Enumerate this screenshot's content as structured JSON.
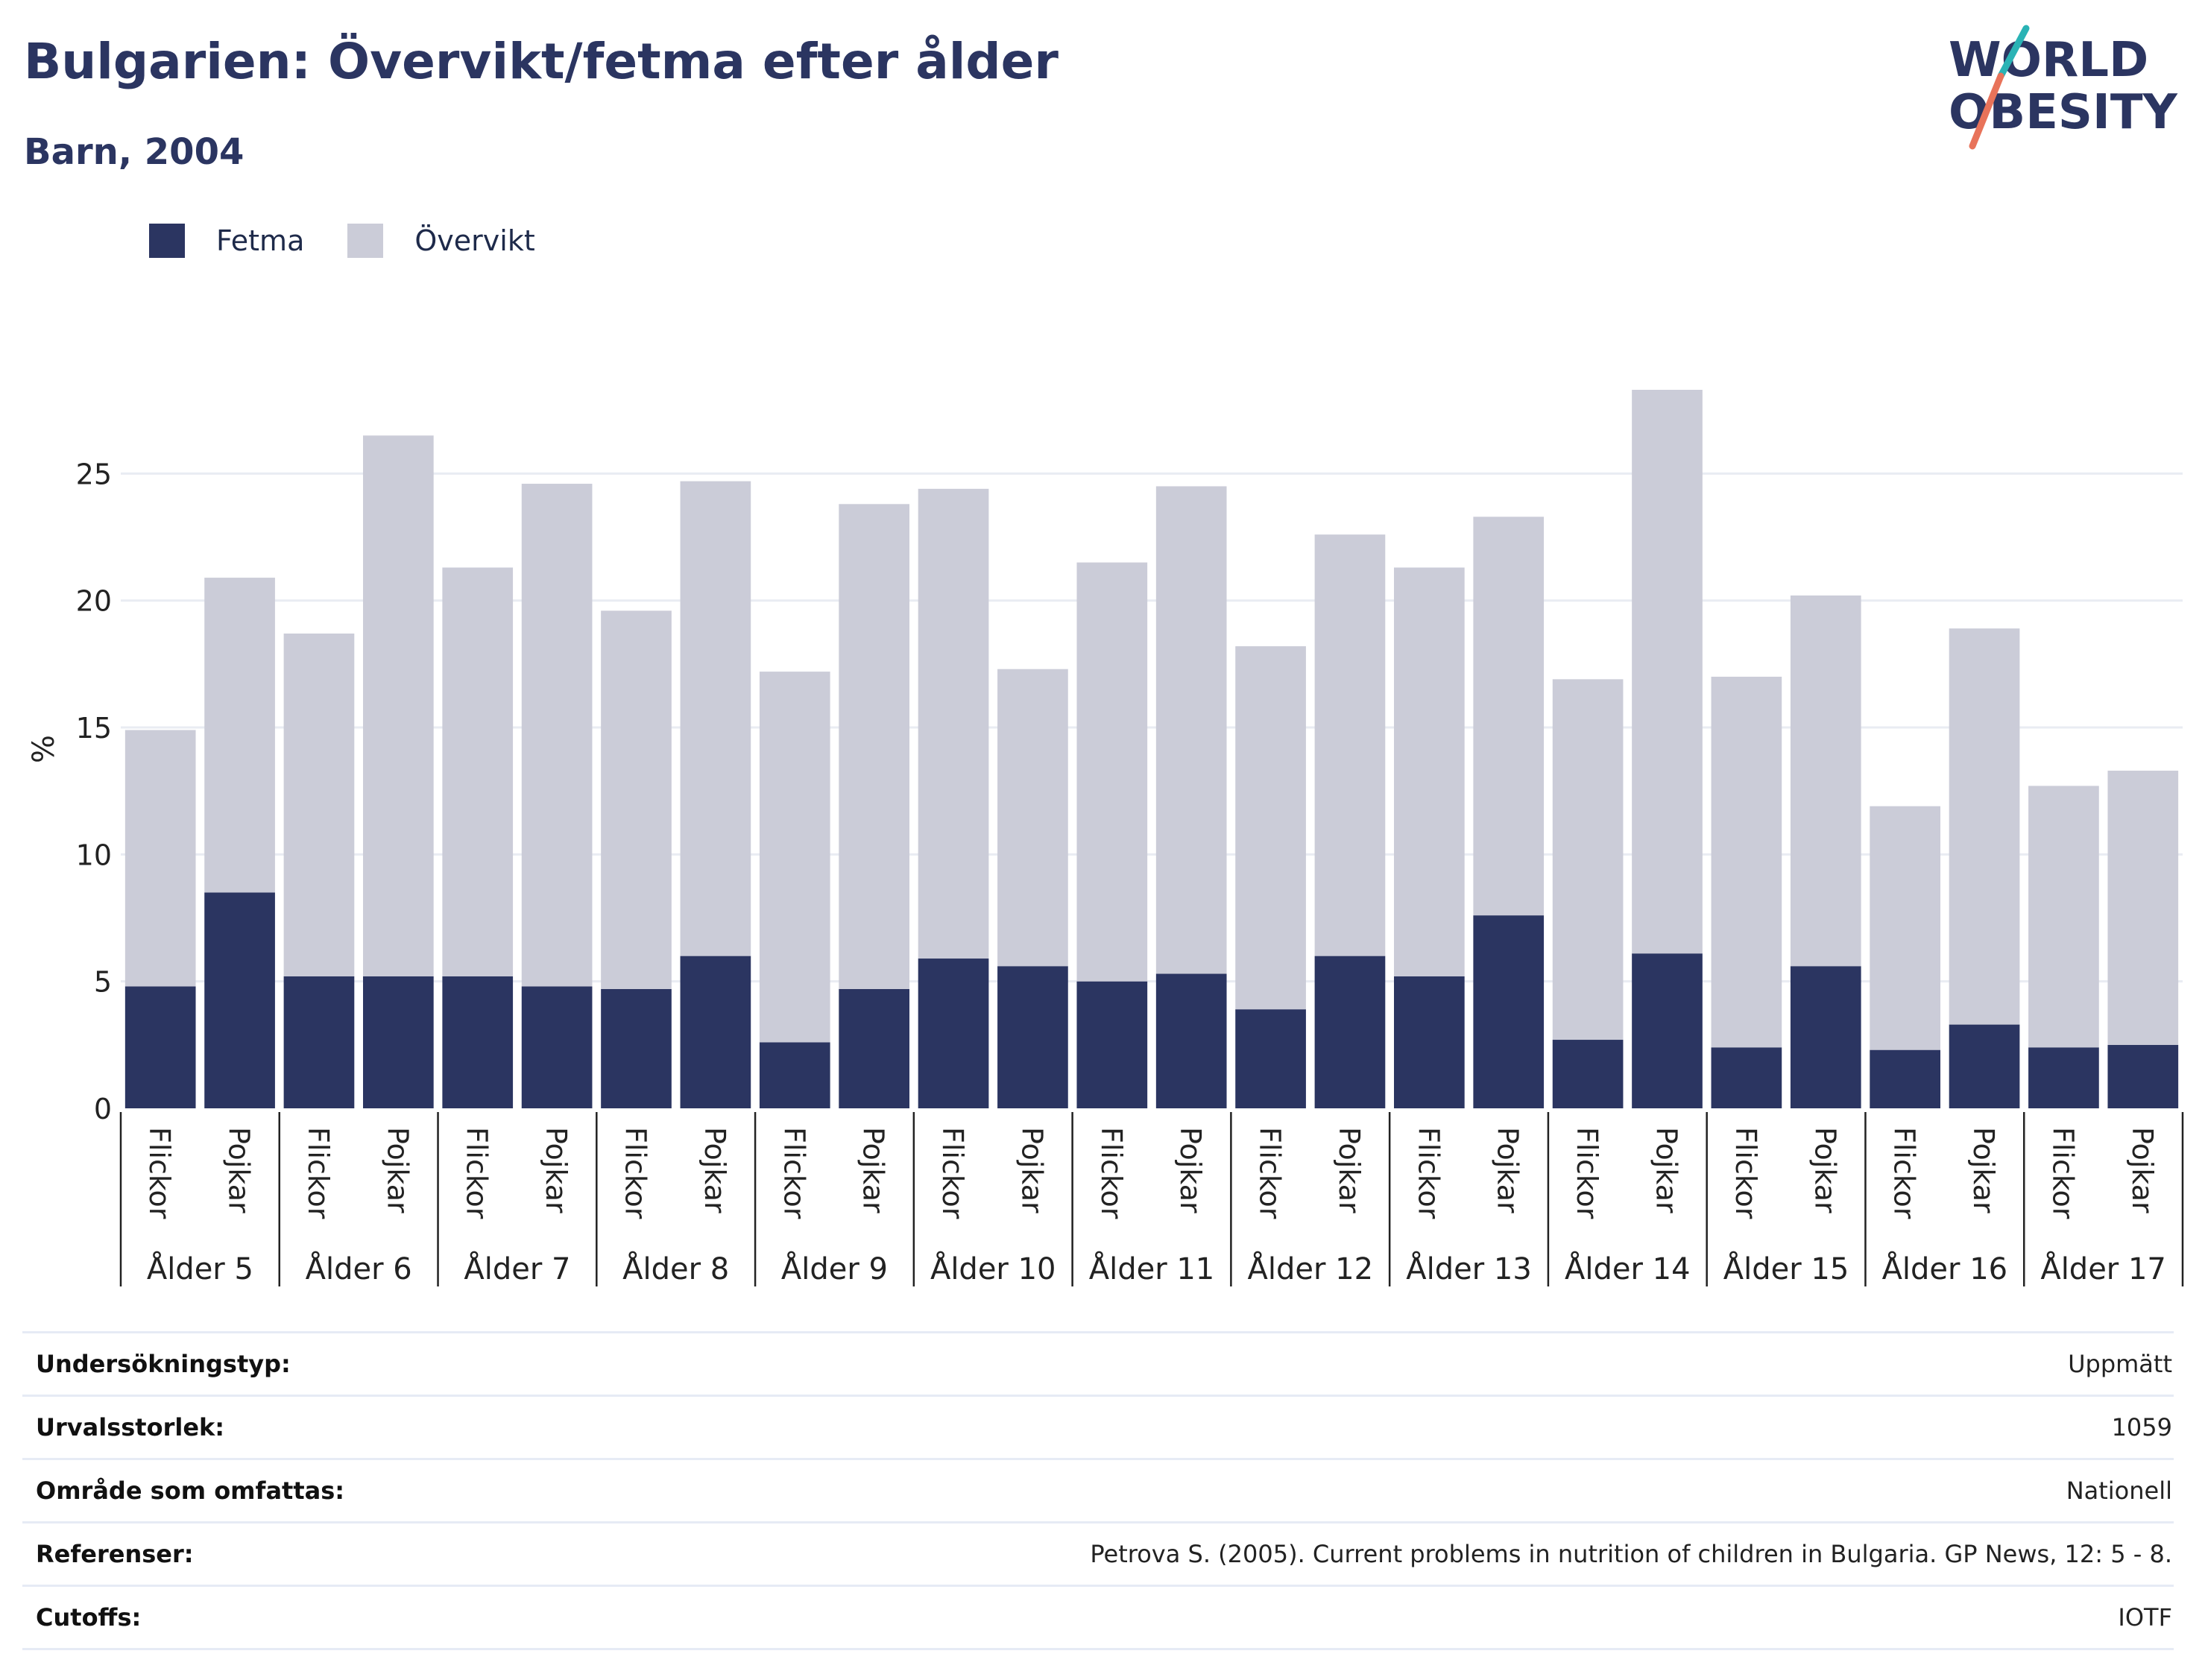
{
  "header": {
    "title": "Bulgarien: Övervikt/fetma efter ålder",
    "subtitle": "Barn, 2004"
  },
  "logo": {
    "line1": "WORLD",
    "line2": "OBESITY",
    "colors": {
      "text": "#2b3561",
      "slash_top": "#2ab3b5",
      "slash_bottom": "#e8735a"
    }
  },
  "legend": [
    {
      "name": "Fetma",
      "color": "#2b3561"
    },
    {
      "name": "Övervikt",
      "color": "#cbccd8"
    }
  ],
  "chart_data": {
    "type": "bar",
    "stacked": true,
    "ylabel": "%",
    "ylim": [
      0,
      28.3
    ],
    "yticks": [
      0,
      5,
      10,
      15,
      20,
      25
    ],
    "grid": true,
    "legend_position": "top-left",
    "groups": [
      "Ålder 5",
      "Ålder 6",
      "Ålder 7",
      "Ålder 8",
      "Ålder 9",
      "Ålder 10",
      "Ålder 11",
      "Ålder 12",
      "Ålder 13",
      "Ålder 14",
      "Ålder 15",
      "Ålder 16",
      "Ålder 17"
    ],
    "subcategories": [
      "Flickor",
      "Pojkar"
    ],
    "series": [
      {
        "name": "Fetma",
        "color": "#2b3561",
        "values": [
          4.8,
          8.5,
          5.2,
          5.2,
          5.2,
          4.8,
          4.7,
          6.0,
          2.6,
          4.7,
          5.9,
          5.6,
          5.0,
          5.3,
          3.9,
          6.0,
          5.2,
          7.6,
          2.7,
          6.1,
          2.4,
          5.6,
          2.3,
          3.3,
          2.4,
          2.5
        ]
      },
      {
        "name": "Övervikt",
        "color": "#cbccd8",
        "values": [
          10.1,
          12.4,
          13.5,
          21.3,
          16.1,
          19.8,
          14.9,
          18.7,
          14.6,
          19.1,
          18.5,
          11.7,
          16.5,
          19.2,
          14.3,
          16.6,
          16.1,
          15.7,
          14.2,
          22.2,
          14.6,
          14.6,
          9.6,
          15.6,
          10.3,
          10.8
        ]
      }
    ]
  },
  "info": [
    {
      "label": "Undersökningstyp:",
      "value": "Uppmätt"
    },
    {
      "label": "Urvalsstorlek:",
      "value": "1059"
    },
    {
      "label": "Område som omfattas:",
      "value": "Nationell"
    },
    {
      "label": "Referenser:",
      "value": "Petrova S. (2005). Current problems in nutrition of children in Bulgaria. GP News, 12: 5 - 8."
    },
    {
      "label": "Cutoffs:",
      "value": "IOTF"
    }
  ]
}
